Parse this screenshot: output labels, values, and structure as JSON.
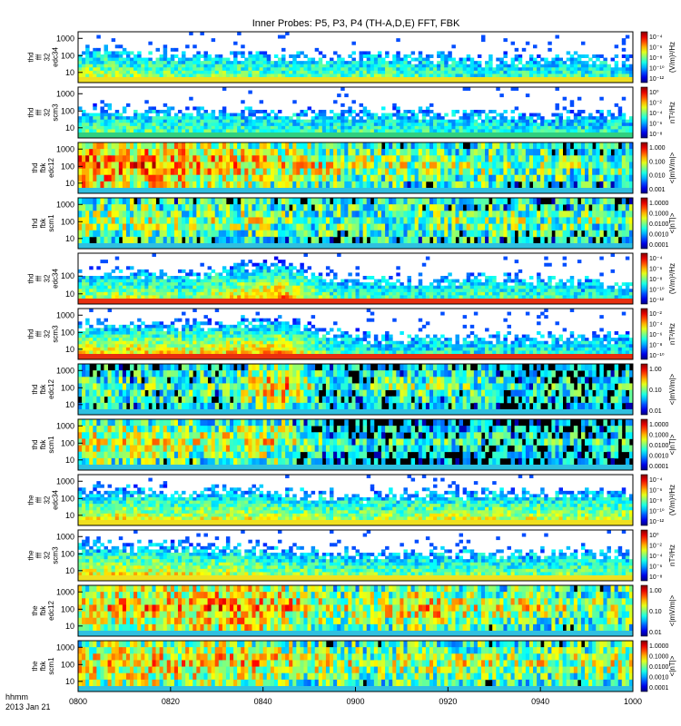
{
  "chart_data": {
    "type": "heatmap",
    "title": "Inner Probes: P5, P3, P4 (TH-A,D,E) FFT, FBK",
    "date_label": "2013 Jan 21",
    "time_format_label": "hhmm",
    "x_ticks": [
      "0800",
      "0820",
      "0840",
      "0900",
      "0920",
      "0940",
      "1000"
    ],
    "panels": [
      {
        "probe": "thd",
        "kind": "fff",
        "instrument": "32",
        "sensor": "edc34",
        "ylabel": [
          "thd",
          "fff",
          "32",
          "edc34"
        ],
        "yticks": [
          "1000",
          "100",
          "10"
        ],
        "cb_ticks": [
          "10⁻⁴",
          "10⁻⁶",
          "10⁻⁸",
          "10⁻¹⁰",
          "10⁻¹²"
        ],
        "cb_unit": "(V/m)²/Hz",
        "profile": "fff_e",
        "activity": [
          0.5,
          0.45,
          0.4,
          0.42,
          0.38,
          0.35,
          0.4,
          0.36,
          0.3,
          0.33,
          0.35,
          0.3
        ],
        "band": "yellow"
      },
      {
        "probe": "thd",
        "kind": "fff",
        "instrument": "32",
        "sensor": "scm3",
        "ylabel": [
          "thd",
          "fff",
          "32",
          "scm3"
        ],
        "yticks": [
          "1000",
          "100",
          "10"
        ],
        "cb_ticks": [
          "10⁰",
          "10⁻²",
          "10⁻⁴",
          "10⁻⁶",
          "10⁻⁸"
        ],
        "cb_unit": "nT²/Hz",
        "profile": "fff_b",
        "activity": [
          0.4,
          0.38,
          0.36,
          0.35,
          0.35,
          0.33,
          0.34,
          0.33,
          0.32,
          0.3,
          0.3,
          0.3
        ],
        "band": "green"
      },
      {
        "probe": "thd",
        "kind": "fbk",
        "instrument": "",
        "sensor": "edc12",
        "ylabel": [
          "thd",
          "fbk",
          "edc12"
        ],
        "yticks": [
          "1000",
          "100",
          "10"
        ],
        "cb_ticks": [
          "1.000",
          "0.100",
          "0.010",
          "0.001"
        ],
        "cb_unit": "<|mV/m|>",
        "profile": "fbk_e",
        "activity": [
          0.85,
          0.8,
          0.78,
          0.7,
          0.65,
          0.6,
          0.55,
          0.5,
          0.55,
          0.5,
          0.45,
          0.5
        ],
        "band": ""
      },
      {
        "probe": "thd",
        "kind": "fbk",
        "instrument": "",
        "sensor": "scm1",
        "ylabel": [
          "thd",
          "fbk",
          "scm1"
        ],
        "yticks": [
          "1000",
          "100",
          "10"
        ],
        "cb_ticks": [
          "1.0000",
          "0.1000",
          "0.0100",
          "0.0010",
          "0.0001"
        ],
        "cb_unit": "<|nT|>",
        "profile": "fbk_b",
        "activity": [
          0.55,
          0.55,
          0.5,
          0.55,
          0.5,
          0.45,
          0.45,
          0.5,
          0.5,
          0.45,
          0.45,
          0.45
        ],
        "band": ""
      },
      {
        "probe": "thd",
        "kind": "fff",
        "instrument": "32",
        "sensor": "edc34",
        "ylabel": [
          "thd",
          "fff",
          "32",
          "edc34"
        ],
        "yticks": [
          "100",
          "10"
        ],
        "cb_ticks": [
          "10⁻⁴",
          "10⁻⁶",
          "10⁻⁸",
          "10⁻¹⁰",
          "10⁻¹²"
        ],
        "cb_unit": "(V/m)²/Hz",
        "profile": "fff_e2",
        "activity": [
          0.45,
          0.5,
          0.4,
          0.55,
          0.7,
          0.35,
          0.35,
          0.3,
          0.4,
          0.35,
          0.3,
          0.3
        ],
        "band": "red"
      },
      {
        "probe": "thd",
        "kind": "fff",
        "instrument": "32",
        "sensor": "scm3",
        "ylabel": [
          "thd",
          "fff",
          "32",
          "scm3"
        ],
        "yticks": [
          "1000",
          "100",
          "10"
        ],
        "cb_ticks": [
          "10⁻²",
          "10⁻⁴",
          "10⁻⁶",
          "10⁻⁸",
          "10⁻¹⁰"
        ],
        "cb_unit": "nT²/Hz",
        "profile": "fff_b2",
        "activity": [
          0.55,
          0.6,
          0.55,
          0.6,
          0.65,
          0.35,
          0.3,
          0.3,
          0.3,
          0.3,
          0.3,
          0.3
        ],
        "band": "red"
      },
      {
        "probe": "thd",
        "kind": "fbk",
        "instrument": "",
        "sensor": "edc12",
        "ylabel": [
          "thd",
          "fbk",
          "edc12"
        ],
        "yticks": [
          "1000",
          "100",
          "10"
        ],
        "cb_ticks": [
          "1.00",
          "0.10",
          "0.01"
        ],
        "cb_unit": "<|mV/m|>",
        "profile": "fbk_e2",
        "activity": [
          0.45,
          0.4,
          0.4,
          0.45,
          0.75,
          0.3,
          0.4,
          0.45,
          0.4,
          0.35,
          0.3,
          0.35
        ],
        "band": ""
      },
      {
        "probe": "thd",
        "kind": "fbk",
        "instrument": "",
        "sensor": "scm1",
        "ylabel": [
          "thd",
          "fbk",
          "scm1"
        ],
        "yticks": [
          "1000",
          "100",
          "10"
        ],
        "cb_ticks": [
          "1.0000",
          "0.1000",
          "0.0100",
          "0.0010",
          "0.0001"
        ],
        "cb_unit": "<|nT|>",
        "profile": "fbk_b2",
        "activity": [
          0.6,
          0.6,
          0.55,
          0.6,
          0.6,
          0.3,
          0.3,
          0.3,
          0.3,
          0.3,
          0.3,
          0.3
        ],
        "band": ""
      },
      {
        "probe": "the",
        "kind": "fff",
        "instrument": "32",
        "sensor": "edc34",
        "ylabel": [
          "the",
          "fff",
          "32",
          "edc34"
        ],
        "yticks": [
          "1000",
          "100",
          "10"
        ],
        "cb_ticks": [
          "10⁻⁴",
          "10⁻⁶",
          "10⁻⁸",
          "10⁻¹⁰",
          "10⁻¹²"
        ],
        "cb_unit": "(V/m)²/Hz",
        "profile": "fff_e3",
        "activity": [
          0.55,
          0.55,
          0.5,
          0.55,
          0.5,
          0.45,
          0.45,
          0.5,
          0.5,
          0.5,
          0.5,
          0.5
        ],
        "band": "yellow"
      },
      {
        "probe": "the",
        "kind": "fff",
        "instrument": "32",
        "sensor": "scm3",
        "ylabel": [
          "the",
          "fff",
          "32",
          "scm3"
        ],
        "yticks": [
          "1000",
          "100",
          "10"
        ],
        "cb_ticks": [
          "10⁰",
          "10⁻²",
          "10⁻⁴",
          "10⁻⁶",
          "10⁻⁸"
        ],
        "cb_unit": "nT²/Hz",
        "profile": "fff_b3",
        "activity": [
          0.55,
          0.55,
          0.55,
          0.5,
          0.45,
          0.4,
          0.4,
          0.4,
          0.4,
          0.4,
          0.4,
          0.4
        ],
        "band": "yellow"
      },
      {
        "probe": "the",
        "kind": "fbk",
        "instrument": "",
        "sensor": "edc12",
        "ylabel": [
          "the",
          "fbk",
          "edc12"
        ],
        "yticks": [
          "1000",
          "100",
          "10"
        ],
        "cb_ticks": [
          "1.00",
          "0.10",
          "0.01"
        ],
        "cb_unit": "<|mV/m|>",
        "profile": "fbk_e3",
        "activity": [
          0.65,
          0.7,
          0.75,
          0.8,
          0.75,
          0.55,
          0.6,
          0.7,
          0.55,
          0.6,
          0.5,
          0.55
        ],
        "band": ""
      },
      {
        "probe": "the",
        "kind": "fbk",
        "instrument": "",
        "sensor": "scm1",
        "ylabel": [
          "the",
          "fbk",
          "scm1"
        ],
        "yticks": [
          "1000",
          "100",
          "10"
        ],
        "cb_ticks": [
          "1.0000",
          "0.1000",
          "0.0100",
          "0.0010",
          "0.0001"
        ],
        "cb_unit": "<|nT|>",
        "profile": "fbk_b3",
        "activity": [
          0.65,
          0.7,
          0.7,
          0.7,
          0.65,
          0.55,
          0.55,
          0.55,
          0.55,
          0.55,
          0.55,
          0.55
        ],
        "band": ""
      }
    ]
  }
}
